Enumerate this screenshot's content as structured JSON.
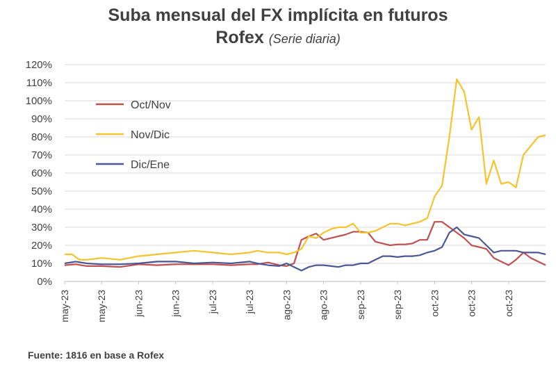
{
  "title": "Suba mensual del FX implícita en futuros",
  "title_line2": "Rofex",
  "subtitle": "(Serie diaria)",
  "source": "Fuente: 1816 en base a Rofex",
  "chart_data": {
    "type": "line",
    "ylim": [
      0,
      120
    ],
    "yticks": [
      0,
      10,
      20,
      30,
      40,
      50,
      60,
      70,
      80,
      90,
      100,
      110,
      120
    ],
    "ytick_labels": [
      "0%",
      "10%",
      "20%",
      "30%",
      "40%",
      "50%",
      "60%",
      "70%",
      "80%",
      "90%",
      "100%",
      "110%",
      "120%"
    ],
    "xtick_labels": [
      "may-23",
      "may-23",
      "jun-23",
      "jun-23",
      "jul-23",
      "jul-23",
      "ago-23",
      "ago-23",
      "sep-23",
      "sep-23",
      "oct-23",
      "oct-23",
      "oct-23"
    ],
    "x_range": [
      0,
      130
    ],
    "xticks": [
      0,
      10,
      20,
      30,
      40,
      50,
      60,
      70,
      80,
      90,
      100,
      110,
      120
    ],
    "grid": "horizontal",
    "legend_position": "top-left",
    "series": [
      {
        "name": "Oct/Nov",
        "color": "#c0504d",
        "x": [
          0,
          3,
          6,
          10,
          15,
          20,
          25,
          30,
          35,
          40,
          45,
          50,
          52,
          55,
          58,
          60,
          62,
          64,
          66,
          68,
          70,
          72,
          74,
          76,
          78,
          80,
          82,
          84,
          86,
          88,
          90,
          92,
          94,
          96,
          98,
          100,
          102,
          104,
          106,
          108,
          110,
          112,
          114,
          116,
          118,
          120,
          122,
          124,
          126,
          128,
          130
        ],
        "y": [
          9,
          9.5,
          8.5,
          8.5,
          8,
          9.5,
          9,
          9.5,
          9.5,
          9.5,
          9,
          9.5,
          9.5,
          10.5,
          9,
          8.5,
          10,
          23,
          25,
          26.5,
          23,
          24,
          25,
          26,
          27.5,
          27.5,
          27,
          22,
          21,
          20,
          20.5,
          20.5,
          21,
          23,
          23,
          33,
          33,
          30,
          27,
          24,
          20,
          19,
          18,
          13,
          11,
          9,
          12,
          16,
          13,
          11,
          9
        ]
      },
      {
        "name": "Nov/Dic",
        "color": "#f5c32c",
        "x": [
          0,
          2,
          4,
          6,
          10,
          15,
          20,
          25,
          30,
          35,
          40,
          45,
          50,
          52,
          55,
          58,
          60,
          62,
          64,
          66,
          68,
          70,
          72,
          74,
          76,
          78,
          80,
          82,
          84,
          86,
          88,
          90,
          92,
          94,
          96,
          98,
          100,
          102,
          104,
          106,
          108,
          110,
          112,
          114,
          116,
          118,
          120,
          122,
          124,
          126,
          128,
          130
        ],
        "y": [
          15,
          15,
          12,
          12,
          13,
          12,
          14,
          15,
          16,
          17,
          16,
          15,
          16,
          17,
          16,
          16,
          15,
          16,
          18,
          25,
          24,
          27,
          29,
          30,
          30,
          32,
          27,
          27,
          28,
          30,
          32,
          32,
          31,
          32,
          33,
          35,
          47,
          53,
          80,
          112,
          105,
          84,
          91,
          54,
          67,
          54,
          55,
          52,
          70,
          75,
          80,
          81
        ]
      },
      {
        "name": "Dic/Ene",
        "color": "#4a5796",
        "x": [
          0,
          3,
          6,
          10,
          15,
          20,
          25,
          30,
          35,
          40,
          45,
          50,
          52,
          55,
          58,
          60,
          62,
          64,
          66,
          68,
          70,
          72,
          74,
          76,
          78,
          80,
          82,
          84,
          86,
          88,
          90,
          92,
          94,
          96,
          98,
          100,
          102,
          104,
          106,
          108,
          110,
          112,
          114,
          116,
          118,
          120,
          122,
          124,
          126,
          128,
          130
        ],
        "y": [
          10,
          11,
          10,
          9.5,
          9.5,
          10,
          11,
          11,
          10,
          10.5,
          10,
          11,
          10,
          9,
          8.5,
          10,
          8,
          6,
          8,
          9,
          9,
          8.5,
          8,
          9,
          9,
          10,
          10,
          12,
          14,
          14,
          13.5,
          14,
          14,
          14.5,
          16,
          17,
          19,
          27,
          30,
          26,
          25,
          24,
          20,
          16,
          17,
          17,
          17,
          16,
          16,
          16,
          15
        ]
      }
    ]
  }
}
